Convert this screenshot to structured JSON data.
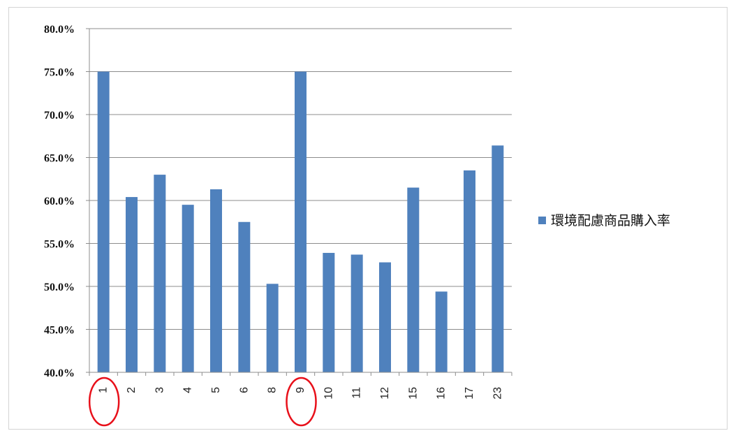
{
  "chart_data": {
    "type": "bar",
    "categories": [
      "1",
      "2",
      "3",
      "4",
      "5",
      "6",
      "8",
      "9",
      "10",
      "11",
      "12",
      "15",
      "16",
      "17",
      "23"
    ],
    "series": [
      {
        "name": "環境配慮商品購入率",
        "color": "#4f81bd",
        "values": [
          75.0,
          60.4,
          63.0,
          59.5,
          61.3,
          57.5,
          50.3,
          75.0,
          53.9,
          53.7,
          52.8,
          61.5,
          49.4,
          63.5,
          66.4
        ]
      }
    ],
    "y_ticks": [
      "40.0%",
      "45.0%",
      "50.0%",
      "55.0%",
      "60.0%",
      "65.0%",
      "70.0%",
      "75.0%",
      "80.0%"
    ],
    "ylim": [
      40,
      80
    ],
    "grid": true,
    "legend_position": "right",
    "highlighted_categories": [
      "1",
      "9"
    ],
    "highlight_color": "#e8101a",
    "title": "",
    "xlabel": "",
    "ylabel": ""
  }
}
